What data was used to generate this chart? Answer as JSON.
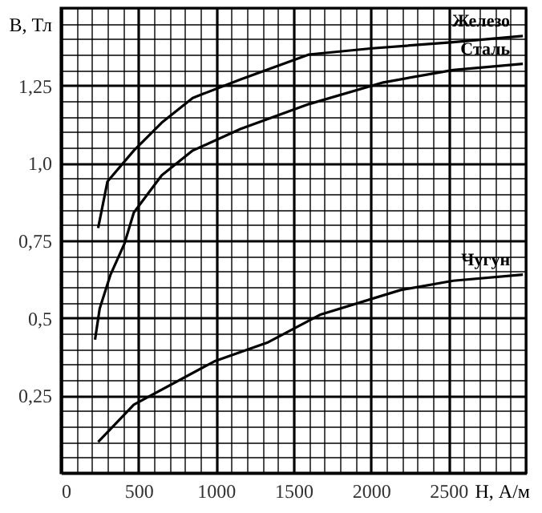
{
  "chart_data": {
    "type": "line",
    "xlabel": "H, А/м",
    "ylabel": "B, Тл",
    "xlim": [
      0,
      3000
    ],
    "ylim": [
      0,
      1.5
    ],
    "grid": true,
    "xticks": [
      0,
      {
        "value": 100,
        "label": null
      },
      {
        "value": 200,
        "label": null
      },
      {
        "value": 300,
        "label": null
      },
      {
        "value": 400,
        "label": null
      },
      500,
      {
        "value": 600,
        "label": null
      },
      {
        "value": 700,
        "label": null
      },
      {
        "value": 800,
        "label": null
      },
      {
        "value": 900,
        "label": null
      },
      1000,
      {
        "value": 1100,
        "label": null
      },
      {
        "value": 1200,
        "label": null
      },
      {
        "value": 1300,
        "label": null
      },
      {
        "value": 1400,
        "label": null
      },
      1500,
      {
        "value": 1600,
        "label": null
      },
      {
        "value": 1700,
        "label": null
      },
      {
        "value": 1800,
        "label": null
      },
      {
        "value": 1900,
        "label": null
      },
      2000,
      {
        "value": 2100,
        "label": null
      },
      {
        "value": 2200,
        "label": null
      },
      {
        "value": 2300,
        "label": null
      },
      {
        "value": 2400,
        "label": null
      },
      2500,
      {
        "value": 2600,
        "label": null
      },
      {
        "value": 2700,
        "label": null
      },
      {
        "value": 2800,
        "label": null
      },
      {
        "value": 2900,
        "label": null
      },
      {
        "value": 3000,
        "label": null
      }
    ],
    "yticks": [
      {
        "value": 0,
        "label": null
      },
      {
        "value": 0.05,
        "label": null
      },
      {
        "value": 0.1,
        "label": null
      },
      {
        "value": 0.15,
        "label": null
      },
      {
        "value": 0.2,
        "label": null
      },
      {
        "value": 0.25,
        "label": "0,25"
      },
      {
        "value": 0.3,
        "label": null
      },
      {
        "value": 0.35,
        "label": null
      },
      {
        "value": 0.4,
        "label": null
      },
      {
        "value": 0.45,
        "label": null
      },
      {
        "value": 0.5,
        "label": "0,5"
      },
      {
        "value": 0.55,
        "label": null
      },
      {
        "value": 0.6,
        "label": null
      },
      {
        "value": 0.65,
        "label": null
      },
      {
        "value": 0.7,
        "label": null
      },
      {
        "value": 0.75,
        "label": "0,75"
      },
      {
        "value": 0.8,
        "label": null
      },
      {
        "value": 0.85,
        "label": null
      },
      {
        "value": 0.9,
        "label": null
      },
      {
        "value": 0.95,
        "label": null
      },
      {
        "value": 1.0,
        "label": "1,0"
      },
      {
        "value": 1.05,
        "label": null
      },
      {
        "value": 1.1,
        "label": null
      },
      {
        "value": 1.15,
        "label": null
      },
      {
        "value": 1.2,
        "label": null
      },
      {
        "value": 1.25,
        "label": "1,25"
      },
      {
        "value": 1.3,
        "label": null
      },
      {
        "value": 1.35,
        "label": null
      },
      {
        "value": 1.4,
        "label": null
      },
      {
        "value": 1.45,
        "label": null
      },
      {
        "value": 1.5,
        "label": null
      }
    ],
    "series": [
      {
        "name": "Железо",
        "color": "#000000",
        "x": [
          240,
          300,
          470,
          650,
          850,
          1160,
          1600,
          2010,
          2530,
          2980
        ],
        "values": [
          0.79,
          0.94,
          1.04,
          1.13,
          1.21,
          1.27,
          1.35,
          1.37,
          1.39,
          1.41
        ]
      },
      {
        "name": "Сталь",
        "color": "#000000",
        "x": [
          220,
          250,
          320,
          410,
          470,
          650,
          850,
          1160,
          1600,
          2080,
          2530,
          2980
        ],
        "values": [
          0.43,
          0.53,
          0.64,
          0.74,
          0.84,
          0.96,
          1.04,
          1.11,
          1.19,
          1.26,
          1.3,
          1.32
        ]
      },
      {
        "name": "Чугун",
        "color": "#000000",
        "x": [
          240,
          470,
          990,
          1330,
          1670,
          2190,
          2530,
          2980
        ],
        "values": [
          0.1,
          0.22,
          0.36,
          0.42,
          0.51,
          0.59,
          0.62,
          0.64
        ]
      }
    ]
  }
}
